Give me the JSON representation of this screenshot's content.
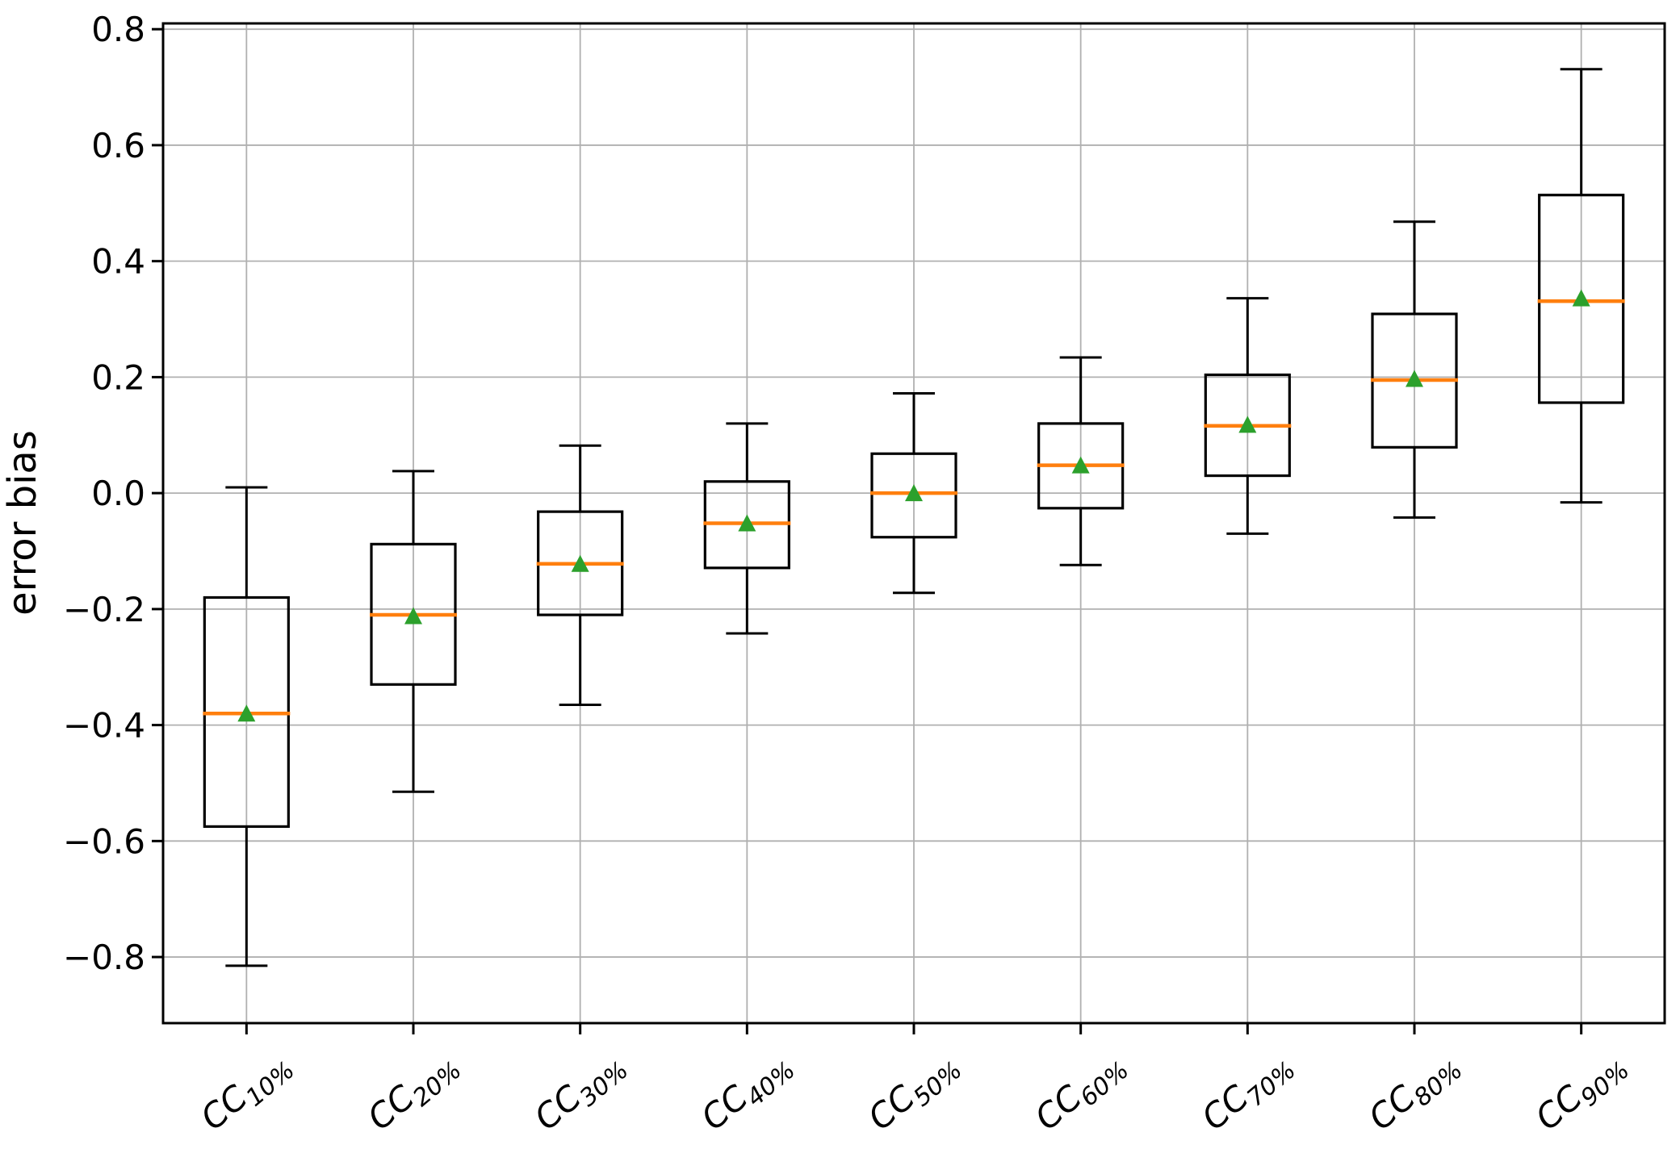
{
  "figure": {
    "background": "#ffffff"
  },
  "chart_data": {
    "type": "boxplot",
    "title": "",
    "xlabel": "",
    "ylabel": "error bias",
    "grid": true,
    "legend": false,
    "ylim": [
      -0.914,
      0.81
    ],
    "yticks": [
      {
        "value": 0.8,
        "label": "0.8"
      },
      {
        "value": 0.6,
        "label": "0.6"
      },
      {
        "value": 0.4,
        "label": "0.4"
      },
      {
        "value": 0.2,
        "label": "0.2"
      },
      {
        "value": 0.0,
        "label": "0.0"
      },
      {
        "value": -0.2,
        "label": "−0.2"
      },
      {
        "value": -0.4,
        "label": "−0.4"
      },
      {
        "value": -0.6,
        "label": "−0.6"
      },
      {
        "value": -0.8,
        "label": "−0.8"
      }
    ],
    "categories": [
      {
        "base": "CC",
        "sub": "10%",
        "full": "CC10%"
      },
      {
        "base": "CC",
        "sub": "20%",
        "full": "CC20%"
      },
      {
        "base": "CC",
        "sub": "30%",
        "full": "CC30%"
      },
      {
        "base": "CC",
        "sub": "40%",
        "full": "CC40%"
      },
      {
        "base": "CC",
        "sub": "50%",
        "full": "CC50%"
      },
      {
        "base": "CC",
        "sub": "60%",
        "full": "CC60%"
      },
      {
        "base": "CC",
        "sub": "70%",
        "full": "CC70%"
      },
      {
        "base": "CC",
        "sub": "80%",
        "full": "CC80%"
      },
      {
        "base": "CC",
        "sub": "90%",
        "full": "CC90%"
      }
    ],
    "boxes": [
      {
        "category": "CC10%",
        "whisker_low": -0.815,
        "q1": -0.575,
        "median": -0.38,
        "mean": -0.38,
        "q3": -0.18,
        "whisker_high": 0.01
      },
      {
        "category": "CC20%",
        "whisker_low": -0.515,
        "q1": -0.33,
        "median": -0.21,
        "mean": -0.212,
        "q3": -0.088,
        "whisker_high": 0.038
      },
      {
        "category": "CC30%",
        "whisker_low": -0.365,
        "q1": -0.21,
        "median": -0.122,
        "mean": -0.122,
        "q3": -0.032,
        "whisker_high": 0.082
      },
      {
        "category": "CC40%",
        "whisker_low": -0.242,
        "q1": -0.129,
        "median": -0.052,
        "mean": -0.052,
        "q3": 0.02,
        "whisker_high": 0.12
      },
      {
        "category": "CC50%",
        "whisker_low": -0.172,
        "q1": -0.076,
        "median": 0.0,
        "mean": 0.0,
        "q3": 0.068,
        "whisker_high": 0.172
      },
      {
        "category": "CC60%",
        "whisker_low": -0.124,
        "q1": -0.026,
        "median": 0.048,
        "mean": 0.048,
        "q3": 0.12,
        "whisker_high": 0.234
      },
      {
        "category": "CC70%",
        "whisker_low": -0.07,
        "q1": 0.03,
        "median": 0.116,
        "mean": 0.118,
        "q3": 0.204,
        "whisker_high": 0.336
      },
      {
        "category": "CC80%",
        "whisker_low": -0.042,
        "q1": 0.079,
        "median": 0.195,
        "mean": 0.197,
        "q3": 0.309,
        "whisker_high": 0.468
      },
      {
        "category": "CC90%",
        "whisker_low": -0.016,
        "q1": 0.156,
        "median": 0.331,
        "mean": 0.336,
        "q3": 0.514,
        "whisker_high": 0.731
      }
    ],
    "colors": {
      "median": "#ff7f0e",
      "mean_marker": "#2ca02c",
      "box_line": "#000000",
      "grid": "#b0b0b0",
      "background": "#ffffff"
    },
    "marker_shapes": {
      "mean": "triangle-up"
    }
  }
}
